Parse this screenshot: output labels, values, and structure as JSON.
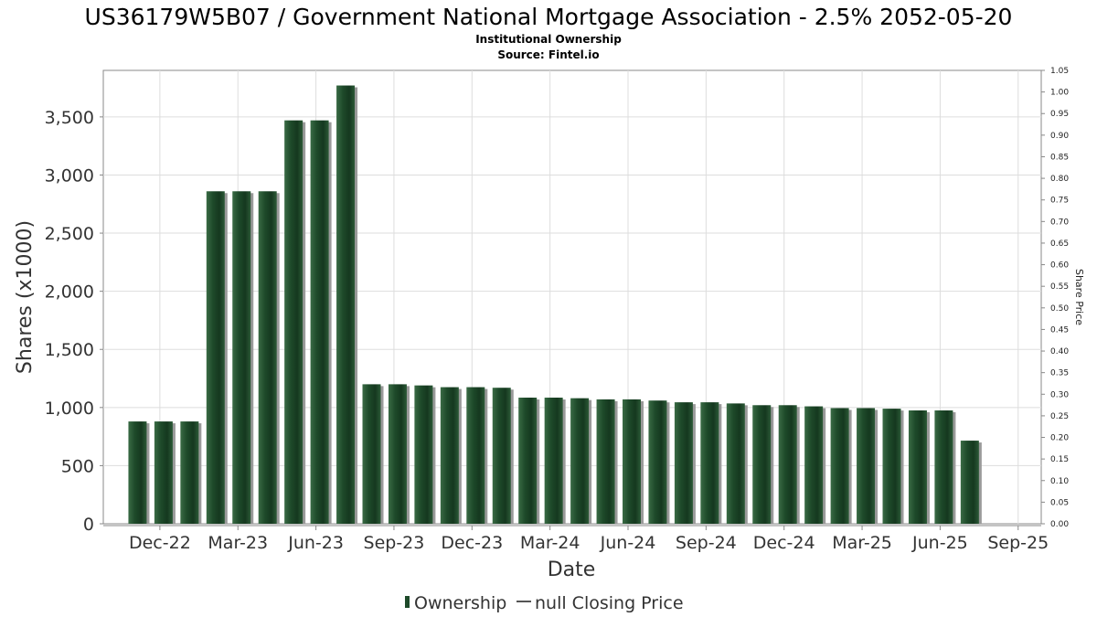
{
  "chart_data": {
    "type": "bar",
    "title": "US36179W5B07 / Government National Mortgage Association - 2.5% 2052-05-20",
    "subtitle": "Institutional Ownership",
    "source": "Source: Fintel.io",
    "xlabel": "Date",
    "ylabel": "Shares (x1000)",
    "y2label": "Share Price",
    "ylim": [
      0,
      3900
    ],
    "y2lim": [
      0,
      1.05
    ],
    "yticks": [
      "0",
      "500",
      "1,000",
      "1,500",
      "2,000",
      "2,500",
      "3,000",
      "3,500"
    ],
    "y2ticks": [
      "0.00",
      "0.05",
      "0.10",
      "0.15",
      "0.20",
      "0.25",
      "0.30",
      "0.35",
      "0.40",
      "0.45",
      "0.50",
      "0.55",
      "0.60",
      "0.65",
      "0.70",
      "0.75",
      "0.80",
      "0.85",
      "0.90",
      "0.95",
      "1.00",
      "1.05"
    ],
    "xticks": [
      "Dec-22",
      "Mar-23",
      "Jun-23",
      "Sep-23",
      "Dec-23",
      "Mar-24",
      "Jun-24",
      "Sep-24",
      "Dec-24",
      "Mar-25",
      "Jun-25",
      "Sep-25"
    ],
    "grid": true,
    "legend_position": "bottom",
    "series": [
      {
        "name": "Ownership",
        "color": "#1e4a2a",
        "values": [
          880,
          880,
          880,
          2860,
          2860,
          2860,
          3470,
          3470,
          3770,
          1200,
          1200,
          1190,
          1175,
          1175,
          1170,
          1085,
          1085,
          1080,
          1070,
          1070,
          1060,
          1045,
          1045,
          1035,
          1020,
          1020,
          1010,
          995,
          995,
          990,
          975,
          975,
          715
        ]
      },
      {
        "name": "null Closing Price",
        "color": "#555555",
        "values": []
      }
    ]
  },
  "legend": {
    "items": [
      {
        "label": "Ownership",
        "color": "#1e4a2a"
      },
      {
        "label": "null Closing Price",
        "color": "#555555"
      }
    ]
  }
}
